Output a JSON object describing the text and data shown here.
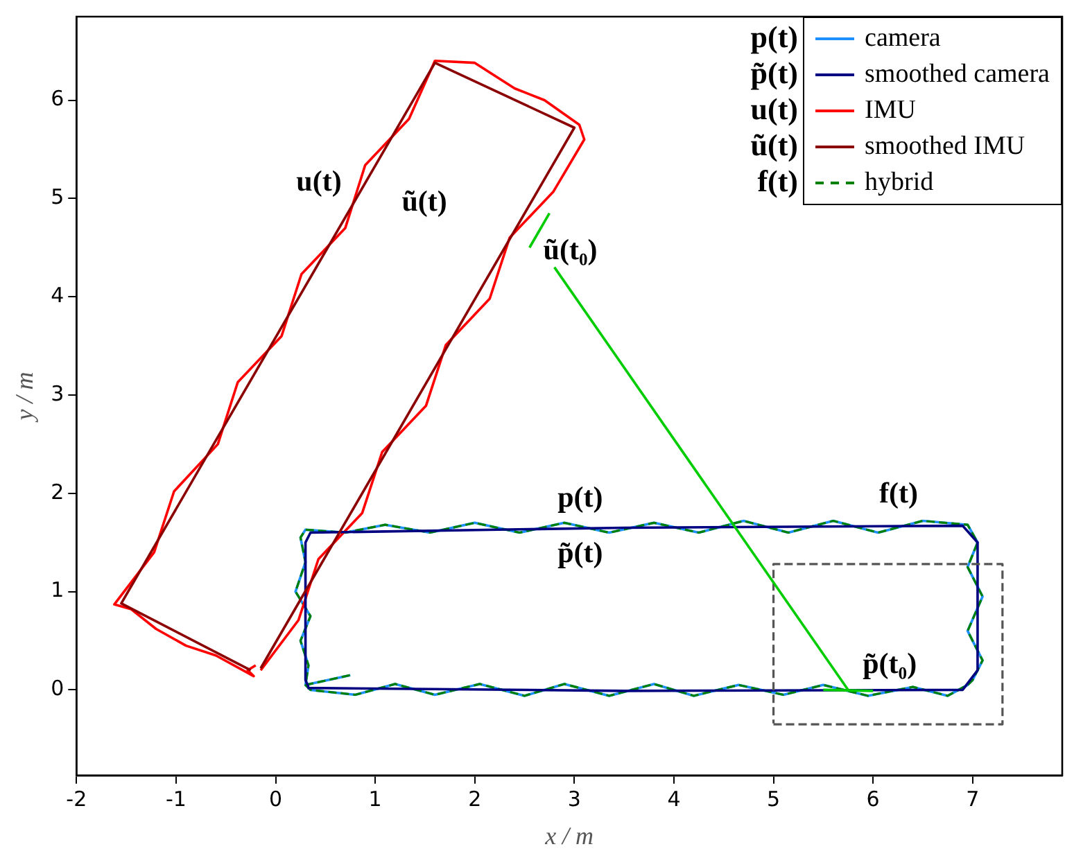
{
  "chart_data": {
    "type": "line",
    "xlabel": "x / m",
    "ylabel": "y / m",
    "xlim": [
      -2,
      7.9
    ],
    "ylim": [
      -0.87,
      6.85
    ],
    "xticks": [
      -2,
      -1,
      0,
      1,
      2,
      3,
      4,
      5,
      6,
      7
    ],
    "yticks": [
      0,
      1,
      2,
      3,
      4,
      5,
      6
    ],
    "grid": false,
    "legend": "top right",
    "marker": "none",
    "annotations": [
      "p(t)",
      "p̃(t)",
      "u(t)",
      "ũ(t)",
      "f(t)",
      "u(t)",
      "ũ(t)",
      "ũ(t₀)",
      "p(t)",
      "p̃(t)",
      "f(t)",
      "p̃(t₀)"
    ],
    "series": [
      {
        "name": "camera",
        "color": "#1e90ff",
        "x": [
          0.3,
          0.35,
          0.8,
          1.2,
          1.6,
          2.05,
          2.5,
          2.9,
          3.35,
          3.8,
          4.2,
          4.65,
          5.1,
          5.5,
          5.95,
          6.4,
          6.75,
          6.95,
          7.0,
          7.1,
          6.95,
          7.1,
          6.95,
          7.05,
          6.95,
          6.5,
          6.05,
          5.6,
          5.15,
          4.7,
          4.25,
          3.8,
          3.35,
          2.9,
          2.45,
          2.0,
          1.55,
          1.1,
          0.7,
          0.3,
          0.25,
          0.3,
          0.2,
          0.35,
          0.25,
          0.33,
          0.3,
          0.75
        ],
        "values": [
          0.05,
          0.0,
          -0.05,
          0.06,
          -0.05,
          0.06,
          -0.06,
          0.06,
          -0.06,
          0.06,
          -0.06,
          0.05,
          -0.05,
          0.05,
          -0.06,
          0.03,
          -0.06,
          0.05,
          0.1,
          0.3,
          0.6,
          0.95,
          1.25,
          1.5,
          1.68,
          1.72,
          1.6,
          1.72,
          1.6,
          1.72,
          1.6,
          1.7,
          1.6,
          1.7,
          1.6,
          1.7,
          1.6,
          1.68,
          1.6,
          1.63,
          1.55,
          1.3,
          1.0,
          0.75,
          0.5,
          0.25,
          0.05,
          0.15
        ]
      },
      {
        "name": "smoothed camera",
        "color": "#000080",
        "x": [
          0.32,
          3.5,
          6.9,
          7.05,
          7.05,
          6.9,
          3.5,
          0.35,
          0.3,
          0.3,
          0.33
        ],
        "values": [
          0.02,
          -0.01,
          0.0,
          0.2,
          1.5,
          1.67,
          1.65,
          1.6,
          1.5,
          0.1,
          0.03
        ]
      },
      {
        "name": "IMU",
        "color": "#ff0000",
        "x": [
          -0.2,
          -0.28,
          -0.22,
          -0.6,
          -0.9,
          -1.2,
          -1.45,
          -1.62,
          -1.22,
          -1.02,
          -0.58,
          -0.38,
          0.06,
          0.26,
          0.7,
          0.9,
          1.34,
          1.6,
          2.0,
          2.4,
          2.7,
          3.05,
          3.1,
          2.79,
          2.35,
          2.15,
          1.71,
          1.51,
          1.07,
          0.87,
          0.43,
          0.23,
          -0.15
        ],
        "values": [
          0.25,
          0.2,
          0.14,
          0.35,
          0.45,
          0.62,
          0.82,
          0.87,
          1.4,
          2.02,
          2.5,
          3.13,
          3.6,
          4.23,
          4.7,
          5.34,
          5.81,
          6.4,
          6.38,
          6.12,
          6.0,
          5.75,
          5.6,
          5.07,
          4.6,
          3.98,
          3.51,
          2.89,
          2.42,
          1.8,
          1.33,
          0.71,
          0.2
        ]
      },
      {
        "name": "smoothed IMU",
        "color": "#8b0000",
        "x": [
          -0.25,
          -1.55,
          1.6,
          3.0,
          -0.15
        ],
        "values": [
          0.2,
          0.88,
          6.38,
          5.72,
          0.22
        ]
      },
      {
        "name": "hybrid",
        "color": "#008000",
        "line_style": "dashed",
        "x": [
          0.3,
          0.35,
          0.8,
          1.2,
          1.6,
          2.05,
          2.5,
          2.9,
          3.35,
          3.8,
          4.2,
          4.65,
          5.1,
          5.5,
          5.95,
          6.4,
          6.75,
          6.95,
          7.0,
          7.1,
          6.95,
          7.1,
          6.95,
          7.05,
          6.95,
          6.5,
          6.05,
          5.6,
          5.15,
          4.7,
          4.25,
          3.8,
          3.35,
          2.9,
          2.45,
          2.0,
          1.55,
          1.1,
          0.7,
          0.3,
          0.25,
          0.3,
          0.2,
          0.35,
          0.25,
          0.33,
          0.3,
          0.75
        ],
        "values": [
          0.05,
          0.0,
          -0.05,
          0.06,
          -0.05,
          0.06,
          -0.06,
          0.06,
          -0.06,
          0.06,
          -0.06,
          0.05,
          -0.05,
          0.05,
          -0.06,
          0.03,
          -0.06,
          0.05,
          0.1,
          0.3,
          0.6,
          0.95,
          1.25,
          1.5,
          1.68,
          1.72,
          1.6,
          1.72,
          1.6,
          1.72,
          1.6,
          1.7,
          1.6,
          1.7,
          1.6,
          1.7,
          1.6,
          1.68,
          1.6,
          1.63,
          1.55,
          1.3,
          1.0,
          0.75,
          0.5,
          0.25,
          0.05,
          0.15
        ]
      },
      {
        "color": "#00cc00",
        "x": [
          2.55,
          2.75
        ],
        "values": [
          4.5,
          4.85
        ]
      },
      {
        "color": "#00cc00",
        "x": [
          5.5,
          6.0
        ],
        "values": [
          0.0,
          -0.01
        ]
      },
      {
        "color": "#00cc00",
        "x": [
          2.8,
          5.75
        ],
        "values": [
          4.3,
          0.0
        ]
      },
      {
        "color": "#555555",
        "line_style": "dashed",
        "x": [
          5.0,
          7.3,
          7.3,
          5.0,
          5.0
        ],
        "values": [
          -0.35,
          -0.35,
          1.28,
          1.28,
          -0.34
        ]
      }
    ]
  }
}
